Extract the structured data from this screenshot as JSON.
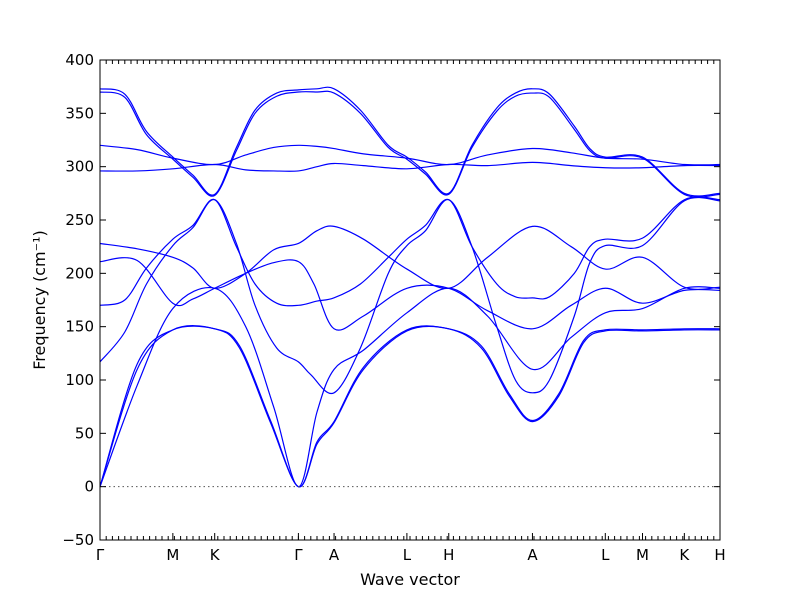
{
  "chart_data": {
    "type": "line",
    "title": "",
    "xlabel": "Wave vector",
    "ylabel": "Frequency (cm⁻¹)",
    "ylim": [
      -50,
      400
    ],
    "xlim": [
      0,
      20
    ],
    "yticks": [
      -50,
      0,
      50,
      100,
      150,
      200,
      250,
      300,
      350,
      400
    ],
    "xticks": [
      {
        "label": "Γ",
        "x": 0
      },
      {
        "label": "M",
        "x": 2.35
      },
      {
        "label": "K",
        "x": 3.7
      },
      {
        "label": "Γ",
        "x": 6.4
      },
      {
        "label": "A",
        "x": 7.55
      },
      {
        "label": "L",
        "x": 9.9
      },
      {
        "label": "H",
        "x": 11.25
      },
      {
        "label": "A",
        "x": 13.95
      },
      {
        "label": "L",
        "x": 16.3
      },
      {
        "label": "M",
        "x": 17.5
      },
      {
        "label": "K",
        "x": 18.85
      },
      {
        "label": "H",
        "x": 20
      }
    ],
    "zero_line": true,
    "grid": false,
    "series": [
      {
        "points": [
          [
            0,
            0
          ],
          [
            1.2,
            110
          ],
          [
            2.35,
            147
          ],
          [
            3.7,
            148
          ],
          [
            4.5,
            130
          ],
          [
            5.5,
            60
          ],
          [
            6.4,
            0
          ],
          [
            7.0,
            40
          ],
          [
            7.55,
            60
          ],
          [
            8.5,
            110
          ],
          [
            9.9,
            146
          ],
          [
            11.25,
            148
          ],
          [
            12.3,
            130
          ],
          [
            13.2,
            85
          ],
          [
            13.95,
            61
          ],
          [
            14.8,
            85
          ],
          [
            15.6,
            135
          ],
          [
            16.3,
            146
          ],
          [
            17.5,
            146
          ],
          [
            18.85,
            147
          ],
          [
            20,
            147
          ]
        ]
      },
      {
        "points": [
          [
            0,
            0
          ],
          [
            1.2,
            115
          ],
          [
            2.35,
            147
          ],
          [
            3.7,
            148
          ],
          [
            4.5,
            132
          ],
          [
            5.5,
            62
          ],
          [
            6.4,
            0
          ],
          [
            7.0,
            42
          ],
          [
            7.55,
            61
          ],
          [
            8.5,
            112
          ],
          [
            9.9,
            147
          ],
          [
            11.25,
            148
          ],
          [
            12.3,
            132
          ],
          [
            13.2,
            87
          ],
          [
            13.95,
            62
          ],
          [
            14.8,
            87
          ],
          [
            15.6,
            137
          ],
          [
            16.3,
            147
          ],
          [
            17.5,
            147
          ],
          [
            18.85,
            148
          ],
          [
            20,
            148
          ]
        ]
      },
      {
        "points": [
          [
            0,
            0
          ],
          [
            1.2,
            95
          ],
          [
            2.35,
            167
          ],
          [
            3.7,
            186
          ],
          [
            4.7,
            150
          ],
          [
            5.6,
            75
          ],
          [
            6.4,
            0
          ],
          [
            7.0,
            70
          ],
          [
            7.55,
            110
          ],
          [
            8.5,
            128
          ],
          [
            9.9,
            163
          ],
          [
            11.25,
            186
          ],
          [
            12.5,
            160
          ],
          [
            13.95,
            110
          ],
          [
            15.2,
            140
          ],
          [
            16.3,
            163
          ],
          [
            17.5,
            167
          ],
          [
            18.85,
            186
          ],
          [
            20,
            186
          ]
        ]
      },
      {
        "points": [
          [
            0,
            117
          ],
          [
            0.8,
            145
          ],
          [
            1.5,
            190
          ],
          [
            2.35,
            226
          ],
          [
            3.0,
            243
          ],
          [
            3.7,
            269
          ],
          [
            4.4,
            228
          ],
          [
            5.0,
            170
          ],
          [
            5.7,
            130
          ],
          [
            6.4,
            117
          ],
          [
            6.8,
            105
          ],
          [
            7.55,
            88
          ],
          [
            8.4,
            130
          ],
          [
            9.3,
            200
          ],
          [
            9.9,
            226
          ],
          [
            10.5,
            240
          ],
          [
            11.25,
            269
          ],
          [
            12.0,
            225
          ],
          [
            12.8,
            150
          ],
          [
            13.4,
            100
          ],
          [
            13.95,
            88
          ],
          [
            14.5,
            100
          ],
          [
            15.3,
            160
          ],
          [
            15.8,
            210
          ],
          [
            16.3,
            226
          ],
          [
            17.5,
            226
          ],
          [
            18.85,
            268
          ],
          [
            20,
            268
          ]
        ]
      },
      {
        "points": [
          [
            0,
            170
          ],
          [
            0.8,
            175
          ],
          [
            1.5,
            205
          ],
          [
            2.35,
            232
          ],
          [
            3.0,
            245
          ],
          [
            3.7,
            269
          ],
          [
            4.4,
            225
          ],
          [
            5.0,
            190
          ],
          [
            5.7,
            172
          ],
          [
            6.4,
            170
          ],
          [
            7.0,
            174
          ],
          [
            7.55,
            177
          ],
          [
            8.4,
            190
          ],
          [
            9.3,
            215
          ],
          [
            9.9,
            232
          ],
          [
            10.5,
            245
          ],
          [
            11.25,
            269
          ],
          [
            12.0,
            225
          ],
          [
            12.8,
            190
          ],
          [
            13.4,
            178
          ],
          [
            13.95,
            177
          ],
          [
            14.5,
            178
          ],
          [
            15.3,
            200
          ],
          [
            15.8,
            225
          ],
          [
            16.3,
            232
          ],
          [
            17.5,
            233
          ],
          [
            18.85,
            269
          ],
          [
            20,
            269
          ]
        ]
      },
      {
        "points": [
          [
            0,
            211
          ],
          [
            1.2,
            212
          ],
          [
            2.35,
            172
          ],
          [
            3.0,
            176
          ],
          [
            3.7,
            186
          ],
          [
            4.7,
            200
          ],
          [
            5.6,
            210
          ],
          [
            6.4,
            211
          ],
          [
            6.9,
            190
          ],
          [
            7.55,
            148
          ],
          [
            8.5,
            160
          ],
          [
            9.9,
            186
          ],
          [
            11.25,
            186
          ],
          [
            12.5,
            165
          ],
          [
            13.95,
            148
          ],
          [
            15.2,
            170
          ],
          [
            16.3,
            186
          ],
          [
            17.5,
            172
          ],
          [
            18.85,
            184
          ],
          [
            20,
            184
          ]
        ]
      },
      {
        "points": [
          [
            0,
            228
          ],
          [
            1.2,
            223
          ],
          [
            2.35,
            215
          ],
          [
            3.0,
            205
          ],
          [
            3.7,
            186
          ],
          [
            4.7,
            200
          ],
          [
            5.6,
            222
          ],
          [
            6.4,
            228
          ],
          [
            7.0,
            240
          ],
          [
            7.55,
            244
          ],
          [
            8.5,
            232
          ],
          [
            9.9,
            204
          ],
          [
            11.25,
            186
          ],
          [
            12.5,
            215
          ],
          [
            13.95,
            244
          ],
          [
            15.2,
            225
          ],
          [
            16.3,
            204
          ],
          [
            17.5,
            215
          ],
          [
            18.85,
            187
          ],
          [
            20,
            187
          ]
        ]
      },
      {
        "points": [
          [
            0,
            296
          ],
          [
            1.2,
            296
          ],
          [
            2.35,
            298
          ],
          [
            3.7,
            302
          ],
          [
            4.7,
            297
          ],
          [
            5.6,
            296
          ],
          [
            6.4,
            296
          ],
          [
            7.0,
            300
          ],
          [
            7.55,
            303
          ],
          [
            8.5,
            301
          ],
          [
            9.9,
            298
          ],
          [
            11.25,
            302
          ],
          [
            12.5,
            301
          ],
          [
            13.95,
            304
          ],
          [
            15.2,
            301
          ],
          [
            16.3,
            299
          ],
          [
            17.5,
            299
          ],
          [
            18.85,
            301
          ],
          [
            20,
            301
          ]
        ]
      },
      {
        "points": [
          [
            0,
            320
          ],
          [
            1.2,
            316
          ],
          [
            2.35,
            308
          ],
          [
            3.7,
            302
          ],
          [
            4.7,
            311
          ],
          [
            5.6,
            318
          ],
          [
            6.4,
            320
          ],
          [
            7.0,
            319
          ],
          [
            7.55,
            317
          ],
          [
            8.5,
            312
          ],
          [
            9.9,
            308
          ],
          [
            11.25,
            302
          ],
          [
            12.5,
            311
          ],
          [
            13.95,
            317
          ],
          [
            15.2,
            313
          ],
          [
            16.3,
            308
          ],
          [
            17.5,
            307
          ],
          [
            18.85,
            302
          ],
          [
            20,
            302
          ]
        ]
      },
      {
        "points": [
          [
            0,
            370
          ],
          [
            0.8,
            365
          ],
          [
            1.5,
            330
          ],
          [
            2.35,
            307
          ],
          [
            3.0,
            290
          ],
          [
            3.7,
            273
          ],
          [
            4.4,
            315
          ],
          [
            5.0,
            350
          ],
          [
            5.7,
            366
          ],
          [
            6.4,
            370
          ],
          [
            7.0,
            370
          ],
          [
            7.55,
            369
          ],
          [
            8.4,
            350
          ],
          [
            9.3,
            318
          ],
          [
            9.9,
            307
          ],
          [
            10.5,
            293
          ],
          [
            11.25,
            274
          ],
          [
            12.0,
            318
          ],
          [
            12.8,
            352
          ],
          [
            13.4,
            366
          ],
          [
            13.95,
            369
          ],
          [
            14.5,
            365
          ],
          [
            15.3,
            335
          ],
          [
            15.8,
            315
          ],
          [
            16.3,
            308
          ],
          [
            17.5,
            308
          ],
          [
            18.85,
            274
          ],
          [
            20,
            274
          ]
        ]
      },
      {
        "points": [
          [
            0,
            373
          ],
          [
            0.8,
            368
          ],
          [
            1.5,
            333
          ],
          [
            2.35,
            309
          ],
          [
            3.0,
            292
          ],
          [
            3.7,
            274
          ],
          [
            4.4,
            318
          ],
          [
            5.0,
            353
          ],
          [
            5.7,
            369
          ],
          [
            6.4,
            372
          ],
          [
            7.0,
            373
          ],
          [
            7.55,
            373
          ],
          [
            8.4,
            353
          ],
          [
            9.3,
            320
          ],
          [
            9.9,
            309
          ],
          [
            10.5,
            295
          ],
          [
            11.25,
            275
          ],
          [
            12.0,
            320
          ],
          [
            12.8,
            355
          ],
          [
            13.4,
            369
          ],
          [
            13.95,
            373
          ],
          [
            14.5,
            368
          ],
          [
            15.3,
            338
          ],
          [
            15.8,
            317
          ],
          [
            16.3,
            309
          ],
          [
            17.5,
            309
          ],
          [
            18.85,
            275
          ],
          [
            20,
            275
          ]
        ]
      }
    ]
  }
}
